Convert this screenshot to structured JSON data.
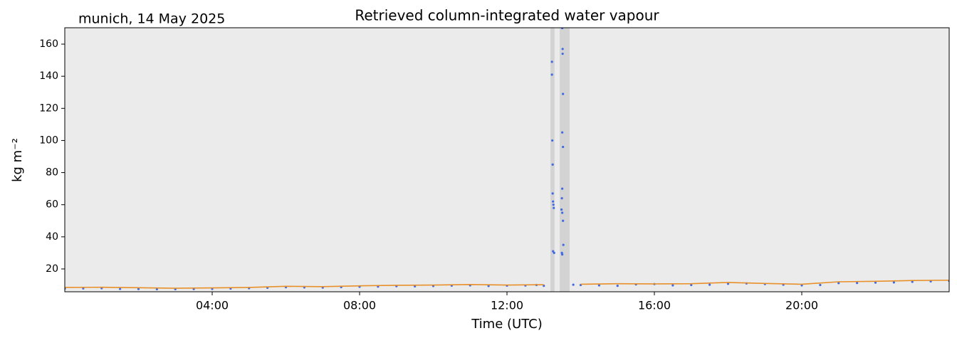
{
  "chart_data": {
    "type": "scatter",
    "title": "Retrieved column-integrated water vapour",
    "subtitle": "munich, 14 May 2025",
    "x_label": "Time (UTC)",
    "y_label": "kg m⁻²",
    "xlim": [
      0,
      24
    ],
    "ylim": [
      5.8,
      170.2
    ],
    "xticks": [
      {
        "value": 4,
        "label": "04:00"
      },
      {
        "value": 8,
        "label": "08:00"
      },
      {
        "value": 12,
        "label": "12:00"
      },
      {
        "value": 16,
        "label": "16:00"
      },
      {
        "value": 20,
        "label": "20:00"
      }
    ],
    "yticks": [
      20,
      40,
      60,
      80,
      100,
      120,
      140,
      160
    ],
    "background": "#ebebeb",
    "shaded_spans": [
      [
        13.18,
        13.29
      ],
      [
        13.43,
        13.7
      ]
    ],
    "shade_color": "#d3d3d3",
    "series": [
      {
        "type": "scatter",
        "color": "#4169e1",
        "x": [
          0,
          0.5,
          1,
          1.5,
          2,
          2.5,
          3,
          3.5,
          4,
          4.5,
          5,
          5.5,
          6,
          6.5,
          7,
          7.5,
          8,
          8.5,
          9,
          9.5,
          10,
          10.5,
          11,
          11.5,
          12,
          12.5,
          12.8,
          13.0,
          13.22,
          13.22,
          13.23,
          13.24,
          13.24,
          13.25,
          13.26,
          13.27,
          13.25,
          13.28,
          13.5,
          13.51,
          13.51,
          13.52,
          13.5,
          13.52,
          13.5,
          13.49,
          13.48,
          13.5,
          13.52,
          13.53,
          13.49,
          13.5,
          13.8,
          14,
          14.5,
          15,
          15.5,
          16,
          16.5,
          17,
          17.5,
          18,
          18.5,
          19,
          19.5,
          20,
          20.5,
          21,
          21.5,
          22,
          22.5,
          23,
          23.5,
          24
        ],
        "values": [
          7.8,
          7.9,
          8.0,
          7.6,
          7.5,
          7.4,
          7.4,
          7.5,
          7.6,
          7.8,
          8.0,
          8.3,
          8.6,
          8.5,
          8.4,
          8.7,
          8.9,
          9.0,
          9.3,
          9.2,
          9.4,
          9.6,
          9.8,
          9.4,
          9.6,
          9.7,
          10.0,
          9.5,
          149,
          141,
          100,
          85,
          67,
          62,
          60,
          58,
          31,
          30,
          170,
          157,
          154,
          129,
          105,
          96,
          70,
          64,
          57,
          55,
          50,
          35,
          30,
          29,
          10.2,
          10.0,
          9.8,
          9.5,
          10.4,
          10.6,
          9.8,
          10.0,
          10.2,
          10.8,
          11.0,
          10.6,
          10.2,
          9.8,
          10.0,
          11.2,
          11.3,
          11.5,
          11.6,
          12.0,
          12.3,
          12.6
        ]
      },
      {
        "type": "line",
        "color": "#e8902a",
        "x": [
          0,
          1,
          2,
          3,
          4,
          5,
          6,
          7,
          8,
          9,
          10,
          11,
          12,
          13,
          13.5,
          14,
          15,
          16,
          17,
          18,
          19,
          20,
          21,
          22,
          23,
          24
        ],
        "values": [
          8.5,
          8.6,
          8.3,
          8.0,
          8.2,
          8.5,
          9.2,
          9.0,
          9.5,
          9.8,
          10.0,
          10.3,
          10.0,
          10.2,
          null,
          10.5,
          10.8,
          10.7,
          10.8,
          11.6,
          11.0,
          10.5,
          12.0,
          12.3,
          12.8,
          13.0
        ]
      }
    ]
  }
}
